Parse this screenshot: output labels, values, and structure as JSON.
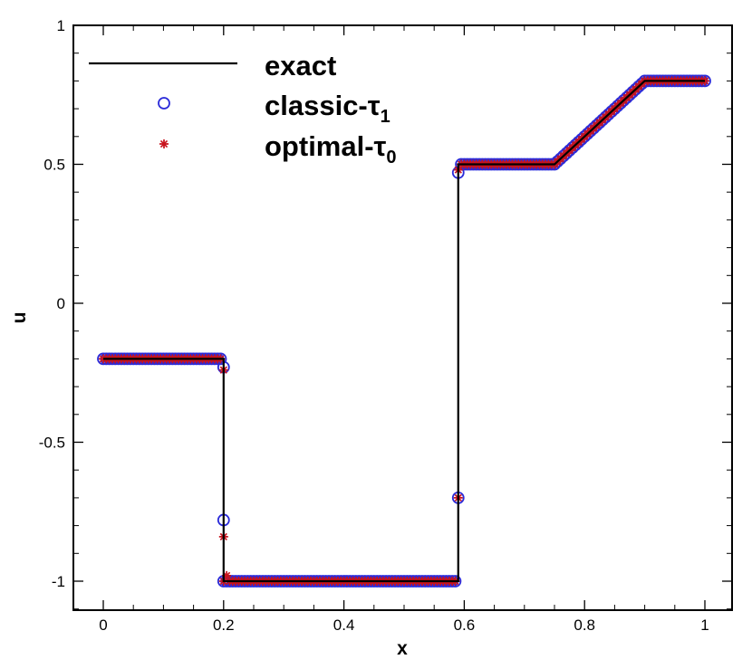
{
  "chart_data": {
    "type": "line",
    "title": "",
    "xlabel": "x",
    "ylabel": "u",
    "xlim": [
      -0.05,
      1.05
    ],
    "ylim": [
      -1.1,
      1.0
    ],
    "xticks": [
      {
        "value": 0,
        "label": "0"
      },
      {
        "value": 0.2,
        "label": "0.2"
      },
      {
        "value": 0.4,
        "label": "0.4"
      },
      {
        "value": 0.6,
        "label": "0.6"
      },
      {
        "value": 0.8,
        "label": "0.8"
      },
      {
        "value": 1,
        "label": "1"
      }
    ],
    "yticks": [
      {
        "value": -1,
        "label": "-1"
      },
      {
        "value": -0.5,
        "label": "-0.5"
      },
      {
        "value": 0,
        "label": "0"
      },
      {
        "value": 0.5,
        "label": "0.5"
      },
      {
        "value": 1,
        "label": "1"
      }
    ],
    "grid": false,
    "legend_position": "top-left",
    "series": [
      {
        "name": "exact",
        "subscript": "",
        "style": "line",
        "color": "#000000",
        "x": [
          0,
          0.2,
          0.2,
          0.59,
          0.59,
          0.75,
          0.9,
          1.0
        ],
        "y": [
          -0.2,
          -0.2,
          -1.0,
          -1.0,
          0.5,
          0.5,
          0.8,
          0.8
        ]
      },
      {
        "name": "classic-τ",
        "subscript": "1",
        "style": "circle",
        "color": "#2b2bd9",
        "x": [
          0.195,
          0.2,
          0.2,
          0.2,
          0.205,
          0.585,
          0.59,
          0.59,
          0.595
        ],
        "y": [
          -0.2,
          -0.23,
          -0.78,
          -1.0,
          -1.0,
          -1.0,
          -0.7,
          0.47,
          0.5
        ]
      },
      {
        "name": "optimal-τ",
        "subscript": "0",
        "style": "star",
        "color": "#c8141e",
        "x": [
          0.195,
          0.2,
          0.2,
          0.2,
          0.205,
          0.585,
          0.59,
          0.59,
          0.595
        ],
        "y": [
          -0.2,
          -0.24,
          -0.84,
          -1.0,
          -0.98,
          -1.0,
          -0.7,
          0.48,
          0.5
        ]
      }
    ],
    "sampling": {
      "start": 0.0,
      "end": 1.0,
      "step": 0.005
    }
  }
}
